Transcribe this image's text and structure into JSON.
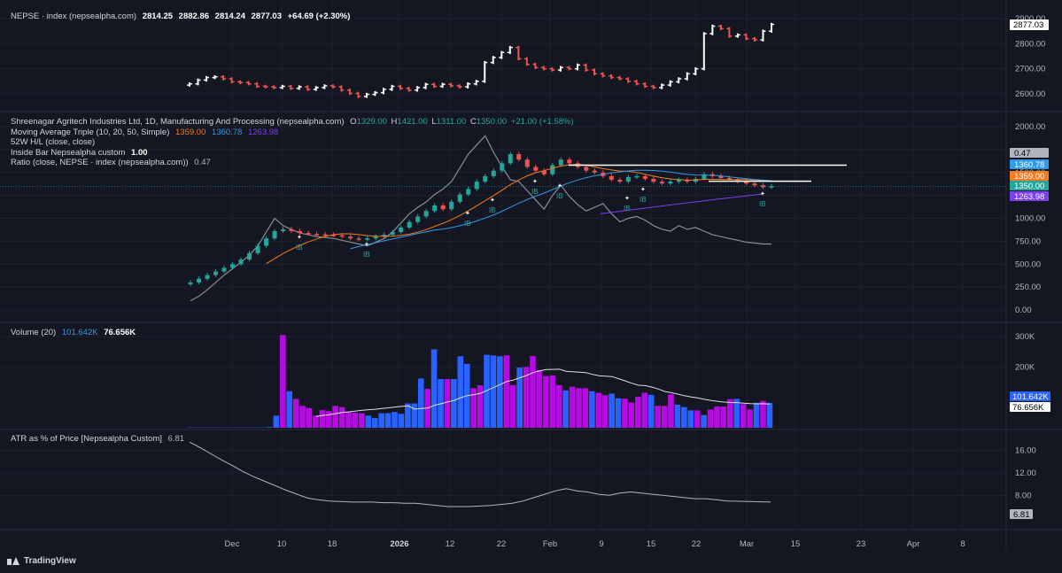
{
  "header": {
    "symbol": "NEPSE · index (nepsealpha.com)",
    "open": "2814.25",
    "high": "2882.86",
    "low": "2814.24",
    "close": "2877.03",
    "change": "+64.69 (+2.30%)"
  },
  "main_legend": {
    "title": "Shreenagar Agritech Industries Ltd, 1D, Manufacturing And Processing (nepsealpha.com)",
    "o_label": "O",
    "o": "1329.00",
    "h_label": "H",
    "h": "1421.00",
    "l_label": "L",
    "l": "1311.00",
    "c_label": "C",
    "c": "1350.00",
    "change": "+21.00 (+1.58%)",
    "ma_label": "Moving Average Triple (10, 20, 50, Simple)",
    "ma10": "1359.00",
    "ma20": "1360.78",
    "ma50": "1263.98",
    "hl_label": "52W H/L (close, close)",
    "ib_label": "Inside Bar Nepsealpha custom",
    "ib_value": "1.00",
    "ratio_label": "Ratio (close, NEPSE · index (nepsealpha.com))",
    "ratio_value": "0.47"
  },
  "volume_legend": {
    "label": "Volume (20)",
    "v1": "101.642K",
    "v2": "76.656K"
  },
  "atr_legend": {
    "label": "ATR as % of Price [Nepsealpha Custom]",
    "value": "6.81"
  },
  "footer": {
    "brand": "TradingView"
  },
  "colors": {
    "bg": "#141722",
    "up": "#26a69a",
    "down": "#ef5350",
    "white": "#ffffff",
    "ma10": "#f57c20",
    "ma20": "#2f9be8",
    "ma50": "#7b3ff2",
    "vol_blue": "#2962ff",
    "vol_magenta": "#b40be0",
    "ratio": "#8a8d94"
  },
  "chart_data": [
    {
      "name": "NEPSE index",
      "type": "ohlc",
      "yticks": [
        2600,
        2700,
        2800,
        2900
      ],
      "last_value_label": "2877.03",
      "close_approx": [
        2640,
        2655,
        2665,
        2668,
        2660,
        2648,
        2645,
        2640,
        2630,
        2628,
        2625,
        2630,
        2622,
        2628,
        2618,
        2625,
        2632,
        2628,
        2615,
        2602,
        2590,
        2598,
        2605,
        2618,
        2630,
        2622,
        2615,
        2625,
        2638,
        2630,
        2638,
        2632,
        2628,
        2640,
        2650,
        2725,
        2745,
        2765,
        2785,
        2740,
        2718,
        2705,
        2700,
        2695,
        2705,
        2700,
        2715,
        2695,
        2680,
        2672,
        2665,
        2660,
        2650,
        2640,
        2630,
        2625,
        2635,
        2648,
        2660,
        2680,
        2700,
        2840,
        2870,
        2860,
        2830,
        2835,
        2820,
        2815,
        2850,
        2877
      ]
    },
    {
      "name": "Shreenagar Agritech Industries Ltd",
      "type": "candlestick",
      "yticks": [
        0,
        250,
        500,
        750,
        1000,
        1250,
        1500,
        1750,
        2000
      ],
      "close_approx": [
        300,
        340,
        380,
        420,
        460,
        500,
        550,
        620,
        700,
        780,
        860,
        880,
        860,
        840,
        830,
        825,
        820,
        815,
        800,
        780,
        770,
        780,
        800,
        820,
        850,
        900,
        960,
        1020,
        1080,
        1140,
        1100,
        1180,
        1260,
        1320,
        1400,
        1460,
        1520,
        1600,
        1700,
        1640,
        1560,
        1520,
        1480,
        1580,
        1640,
        1600,
        1560,
        1520,
        1500,
        1460,
        1420,
        1400,
        1450,
        1460,
        1430,
        1400,
        1380,
        1400,
        1420,
        1400,
        1430,
        1480,
        1460,
        1440,
        1420,
        1400,
        1380,
        1360,
        1340,
        1350
      ],
      "ma10": "1359.00",
      "ma20": "1360.78",
      "ma50": "1263.98",
      "hl_52w_high": 1580,
      "hl_52w_low_value": "1350.00",
      "ratio_value": "0.47",
      "ratio_approx": [
        0.1,
        0.15,
        0.22,
        0.3,
        0.38,
        0.45,
        0.52,
        0.6,
        0.7,
        0.85,
        1.0,
        0.92,
        0.88,
        0.84,
        0.82,
        0.8,
        0.79,
        0.78,
        0.76,
        0.74,
        0.72,
        0.7,
        0.74,
        0.78,
        0.85,
        0.95,
        1.05,
        1.12,
        1.18,
        1.26,
        1.32,
        1.4,
        1.55,
        1.7,
        1.8,
        1.9,
        1.72,
        1.56,
        1.42,
        1.4,
        1.3,
        1.2,
        1.1,
        1.25,
        1.36,
        1.24,
        1.15,
        1.08,
        1.12,
        1.16,
        1.05,
        0.96,
        1.0,
        1.02,
        0.98,
        0.92,
        0.88,
        0.86,
        0.92,
        0.88,
        0.9,
        0.86,
        0.82,
        0.8,
        0.78,
        0.76,
        0.74,
        0.73,
        0.72,
        0.72
      ],
      "inside_bar_labels": [
        "IB",
        "IB",
        "IB",
        "IB",
        "IB",
        "IB",
        "IB",
        "IB",
        "IB",
        "IB",
        "IB"
      ]
    },
    {
      "name": "Volume",
      "type": "bar",
      "yticks": [
        "200K",
        "300K"
      ],
      "values_k": [
        1,
        1,
        1,
        1,
        1,
        1,
        1,
        1,
        1,
        1,
        1,
        1,
        2,
        40,
        305,
        120,
        95,
        72,
        65,
        40,
        58,
        55,
        72,
        68,
        52,
        50,
        48,
        40,
        32,
        48,
        48,
        52,
        46,
        80,
        80,
        162,
        128,
        258,
        160,
        160,
        160,
        235,
        210,
        130,
        140,
        240,
        238,
        235,
        238,
        140,
        198,
        200,
        236,
        190,
        170,
        172,
        140,
        123,
        135,
        130,
        130,
        120,
        115,
        107,
        112,
        97,
        96,
        83,
        102,
        115,
        108,
        72,
        72,
        110,
        76,
        68,
        57,
        57,
        42,
        60,
        70,
        70,
        94,
        95,
        78,
        60,
        82,
        88,
        82
      ],
      "colors_is_blue": [
        1,
        1,
        1,
        1,
        1,
        1,
        1,
        1,
        1,
        1,
        1,
        1,
        1,
        1,
        0,
        1,
        0,
        0,
        0,
        0,
        0,
        0,
        0,
        0,
        0,
        0,
        0,
        1,
        1,
        1,
        1,
        1,
        1,
        1,
        1,
        1,
        0,
        1,
        1,
        0,
        1,
        1,
        1,
        0,
        0,
        1,
        1,
        1,
        0,
        0,
        1,
        0,
        0,
        0,
        0,
        0,
        0,
        1,
        0,
        0,
        0,
        1,
        0,
        0,
        1,
        1,
        0,
        0,
        0,
        0,
        1,
        0,
        0,
        0,
        1,
        1,
        1,
        0,
        1,
        0,
        0,
        0,
        0,
        1,
        0,
        0,
        1,
        0,
        1
      ],
      "last_values": [
        "101.642K",
        "76.656K"
      ]
    },
    {
      "name": "ATR as % of Price",
      "type": "line",
      "yticks": [
        "8.00",
        "12.00",
        "16.00"
      ],
      "last_value": "6.81",
      "values": [
        17.5,
        16.5,
        15.4,
        14.3,
        13.3,
        12.2,
        11.3,
        10.5,
        9.7,
        8.9,
        8.2,
        7.5,
        7.2,
        7.0,
        6.9,
        6.8,
        6.8,
        6.8,
        6.7,
        6.7,
        6.6,
        6.6,
        6.4,
        6.2,
        6.0,
        6.0,
        6.0,
        6.1,
        6.2,
        6.4,
        6.6,
        7.0,
        7.6,
        8.2,
        8.8,
        9.2,
        8.8,
        8.6,
        8.2,
        8.0,
        8.4,
        8.6,
        8.4,
        8.2,
        8.0,
        7.8,
        7.6,
        7.4,
        7.4,
        7.2,
        7.0,
        6.95,
        6.9,
        6.85,
        6.81
      ]
    }
  ],
  "x_axis": {
    "labels": [
      "Dec",
      "10",
      "18",
      "2026",
      "12",
      "22",
      "Feb",
      "9",
      "15",
      "22",
      "Mar",
      "15",
      "23",
      "Apr",
      "8",
      "15"
    ]
  }
}
